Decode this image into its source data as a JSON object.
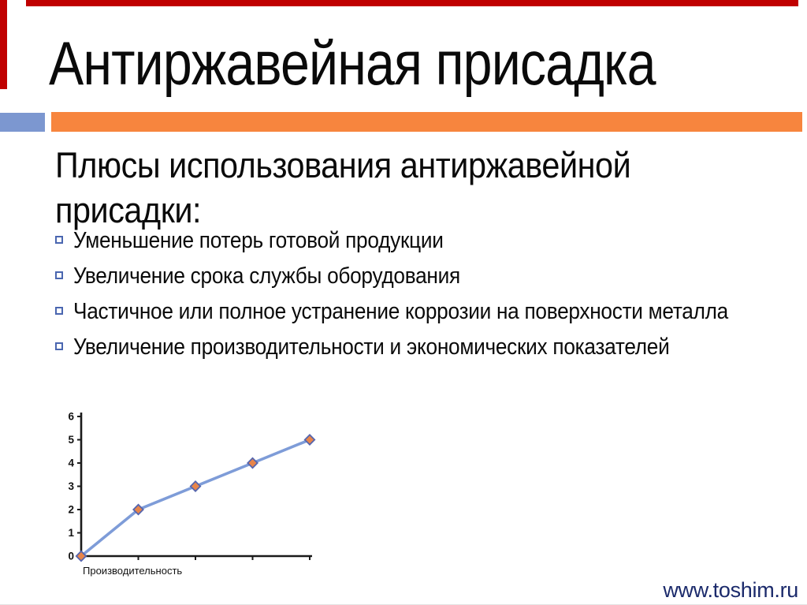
{
  "slide": {
    "title": "Антиржавейная присадка",
    "heading": "Плюсы использования антиржавейной присадки:",
    "bullets": [
      "Уменьшение потерь готовой продукции",
      "Увеличение срока службы оборудования",
      "Частичное или полное устранение коррозии на поверхности металла",
      "Увеличение производительности и экономических показателей"
    ],
    "footer_url": "www.toshim.ru",
    "icons": {
      "bullet": "square-outline"
    },
    "colors": {
      "accent_red": "#C00000",
      "accent_orange": "#F7853E",
      "accent_blue": "#7C97D0",
      "bullet_border": "#4A66B0",
      "footer_text": "#1B2A6B",
      "text": "#0A0A0A",
      "axis": "#1A1A1A",
      "chart_line": "#7E9CD8",
      "marker_fill": "#E8854A",
      "marker_border": "#5565AE"
    }
  },
  "chart_data": {
    "type": "line",
    "x": [
      0,
      1,
      2,
      3,
      4
    ],
    "values": [
      0,
      2,
      3,
      4,
      5
    ],
    "series_name": "Производительность",
    "title": "",
    "xlabel": "Производительность",
    "ylabel": "",
    "ylim": [
      0,
      6
    ],
    "yticks": [
      0,
      1,
      2,
      3,
      4,
      5,
      6
    ],
    "x_tick_labels": [],
    "grid": false,
    "legend": false,
    "marker": "diamond"
  }
}
